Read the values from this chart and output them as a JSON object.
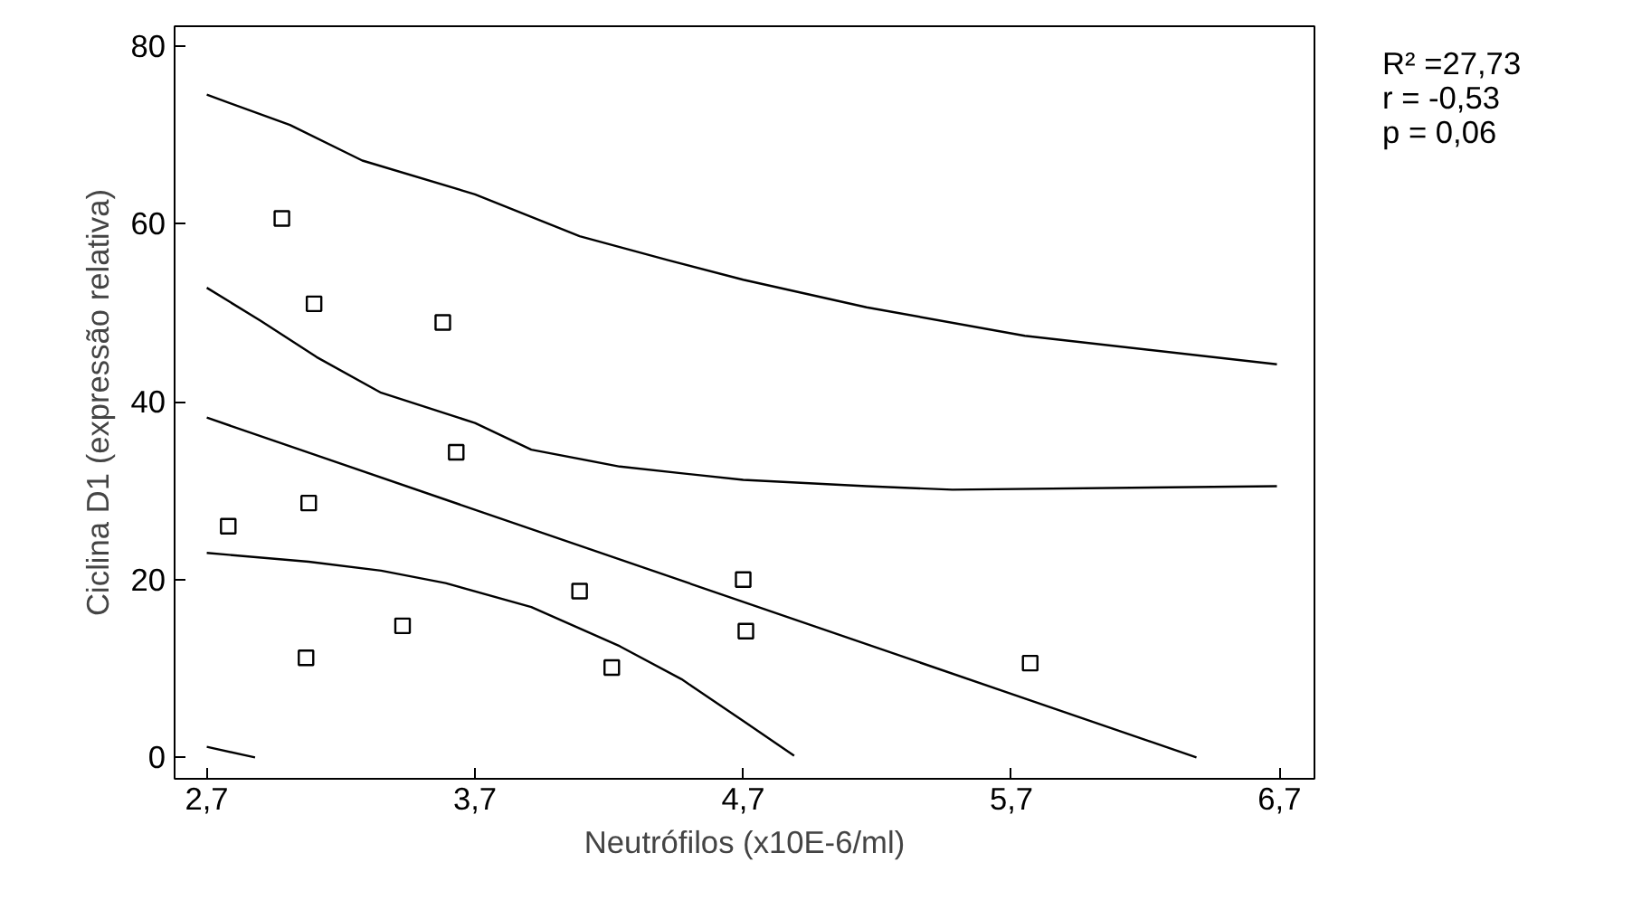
{
  "chart_data": {
    "type": "scatter",
    "xlabel": "Neutrófilos (x10E-6/ml)",
    "ylabel": "Ciclina D1 (expressão relativa)",
    "xlim": [
      2.58,
      6.83
    ],
    "ylim": [
      -2.4,
      82.2
    ],
    "xticks": [
      {
        "value": 2.7,
        "label": "2,7"
      },
      {
        "value": 3.7,
        "label": "3,7"
      },
      {
        "value": 4.7,
        "label": "4,7"
      },
      {
        "value": 5.7,
        "label": "5,7"
      },
      {
        "value": 6.7,
        "label": "6,7"
      }
    ],
    "yticks": [
      0,
      20,
      40,
      60,
      80
    ],
    "grid": false,
    "annotations": [
      "R² =27,73",
      "r = -0,53",
      "p = 0,06"
    ],
    "series": [
      {
        "marker": "square",
        "color": "#000000",
        "x": [
          2.78,
          2.98,
          3.1,
          3.08,
          3.07,
          3.43,
          3.58,
          3.63,
          4.09,
          4.21,
          4.7,
          4.71,
          5.77
        ],
        "values": [
          26.0,
          60.6,
          51.0,
          28.6,
          11.2,
          14.8,
          48.9,
          34.3,
          18.7,
          10.1,
          20.0,
          14.2,
          10.6
        ]
      },
      {
        "type": "line",
        "color": "#000000",
        "x": [
          2.7,
          6.39
        ],
        "values": [
          38.2,
          0
        ]
      },
      {
        "type": "line",
        "color": "#000000",
        "x": [
          2.7,
          2.9,
          3.11,
          3.35,
          3.7,
          3.91,
          4.24,
          4.7,
          5.16,
          5.48,
          6.69
        ],
        "values": [
          52.8,
          49.1,
          45.0,
          41.0,
          37.6,
          34.6,
          32.7,
          31.2,
          30.5,
          30.1,
          30.5
        ]
      },
      {
        "type": "line",
        "color": "#000000",
        "x": [
          2.7,
          3.08,
          3.35,
          3.59,
          3.91,
          4.24,
          4.47,
          4.7,
          4.89
        ],
        "values": [
          23.0,
          22.0,
          21.0,
          19.6,
          16.9,
          12.5,
          8.8,
          4.1,
          0.2
        ]
      },
      {
        "type": "line",
        "color": "#000000",
        "x": [
          2.7,
          3.01,
          3.28,
          3.7,
          4.09,
          4.42,
          4.7,
          5.16,
          5.75,
          6.69
        ],
        "values": [
          74.5,
          71.1,
          67.1,
          63.3,
          58.6,
          55.9,
          53.7,
          50.6,
          47.4,
          44.2
        ]
      },
      {
        "type": "line",
        "color": "#000000",
        "x": [
          2.7,
          2.88
        ],
        "values": [
          1.2,
          0
        ]
      }
    ]
  }
}
